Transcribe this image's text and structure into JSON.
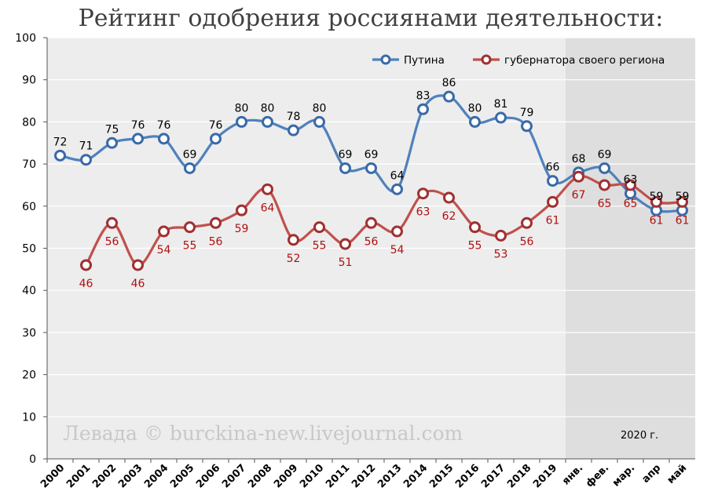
{
  "title": "Рейтинг одобрения россиянами деятельности:",
  "watermark": "Левада © burckina-new.livejournal.com",
  "period_note": "2020 г.",
  "colors": {
    "putin": "#4f81bd",
    "putin_edge": "#3a6aa8",
    "governor": "#c0504d",
    "governor_edge": "#a03030",
    "plot_bg": "#ededed",
    "highlight_bg": "#dedede",
    "grid": "#ffffff",
    "label_governor": "#b01010"
  },
  "chart_data": {
    "type": "line",
    "categories": [
      "2000",
      "2001",
      "2002",
      "2003",
      "2004",
      "2005",
      "2006",
      "2007",
      "2008",
      "2009",
      "2010",
      "2011",
      "2012",
      "2013",
      "2014",
      "2015",
      "2016",
      "2017",
      "2018",
      "2019",
      "янв.",
      "фев.",
      "мар.",
      "апр",
      "май"
    ],
    "highlighted_categories": [
      "янв.",
      "фев.",
      "мар.",
      "апр",
      "май"
    ],
    "ylim": [
      0,
      100
    ],
    "yticks": [
      0,
      10,
      20,
      30,
      40,
      50,
      60,
      70,
      80,
      90,
      100
    ],
    "grid": true,
    "legend_position": "top-right",
    "series": [
      {
        "name": "Путина",
        "color_key": "putin",
        "label_side": "above",
        "values": [
          72,
          71,
          75,
          76,
          76,
          69,
          76,
          80,
          80,
          78,
          80,
          69,
          69,
          64,
          83,
          86,
          80,
          81,
          79,
          66,
          68,
          69,
          63,
          59,
          59
        ]
      },
      {
        "name": "губернатора своего региона",
        "color_key": "governor",
        "label_side": "below",
        "values": [
          null,
          46,
          56,
          46,
          54,
          55,
          56,
          59,
          64,
          52,
          55,
          51,
          56,
          54,
          63,
          62,
          55,
          53,
          56,
          61,
          67,
          65,
          65,
          61,
          61
        ]
      }
    ]
  }
}
